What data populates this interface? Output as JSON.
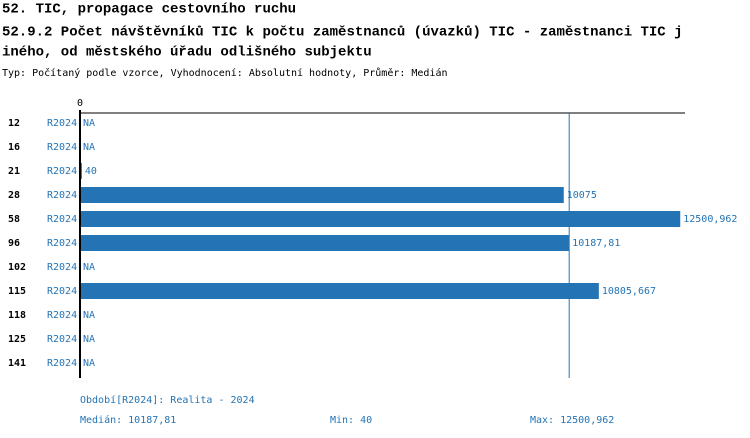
{
  "chart_data": {
    "type": "bar",
    "title_lines": [
      "52. TIC, propagace cestovního ruchu",
      "52.9.2 Počet návštěvníků TIC k počtu zaměstnanců (úvazků) TIC - zaměstnanci TIC j",
      "iného, od městského úřadu odlišného subjektu"
    ],
    "subtitle": "Typ: Počítaný podle vzorce, Vyhodnocení: Absolutní hodnoty, Průměr: Medián",
    "categories": [
      "12",
      "16",
      "21",
      "28",
      "58",
      "96",
      "102",
      "115",
      "118",
      "125",
      "141"
    ],
    "series": [
      {
        "name": "R2024",
        "color": "#2474b5",
        "values": [
          null,
          null,
          40,
          10075,
          12500.962,
          10187.81,
          null,
          10805.667,
          null,
          null,
          null
        ],
        "value_labels": [
          "NA",
          "NA",
          "40",
          "10075",
          "12500,962",
          "10187,81",
          "NA",
          "10805,667",
          "NA",
          "NA",
          "NA"
        ]
      }
    ],
    "xlim": [
      0,
      12600
    ],
    "xticks": [
      0
    ],
    "median": {
      "value": 10187.81,
      "label": "Medián: 10187,81"
    },
    "min": {
      "value": 40,
      "label": "Min: 40"
    },
    "max": {
      "value": 12500.962,
      "label": "Max: 12500,962"
    },
    "period": "Období[R2024]: Realita - 2024"
  }
}
